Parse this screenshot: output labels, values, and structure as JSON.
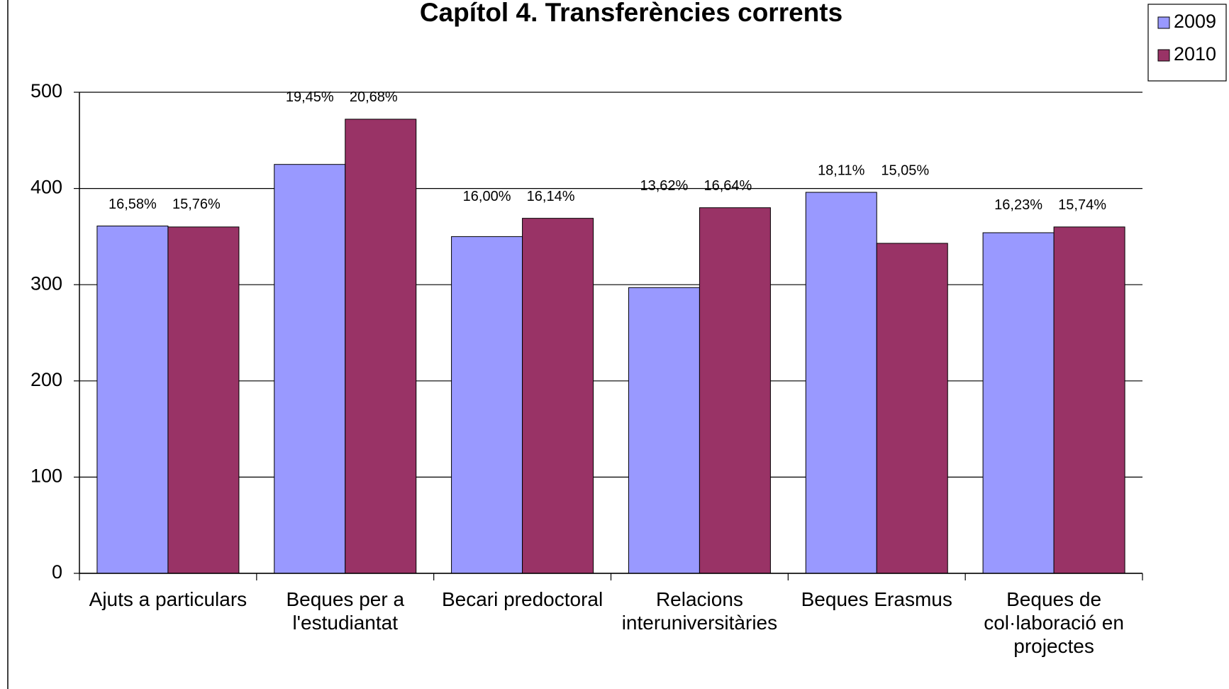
{
  "chart_data": {
    "type": "bar",
    "title": "Capítol 4. Transferències corrents",
    "categories": [
      "Ajuts a particulars",
      "Beques per a l'estudiantat",
      "Becari predoctoral",
      "Relacions interuniversitàries",
      "Beques Erasmus",
      "Beques de col·laboració en projectes"
    ],
    "series": [
      {
        "name": "2009",
        "color": "#9999ff",
        "values": [
          361,
          425,
          350,
          297,
          396,
          354
        ],
        "percent_labels": [
          "16,58%",
          "19,45%",
          "16,00%",
          "13,62%",
          "18,11%",
          "16,23%"
        ]
      },
      {
        "name": "2010",
        "color": "#993366",
        "values": [
          360,
          472,
          369,
          380,
          343,
          360
        ],
        "percent_labels": [
          "15,76%",
          "20,68%",
          "16,14%",
          "16,64%",
          "15,05%",
          "15,74%"
        ]
      }
    ],
    "ylim": [
      0,
      500
    ],
    "yticks": [
      0,
      100,
      200,
      300,
      400,
      500
    ],
    "grid": true,
    "legend": "top-right"
  }
}
